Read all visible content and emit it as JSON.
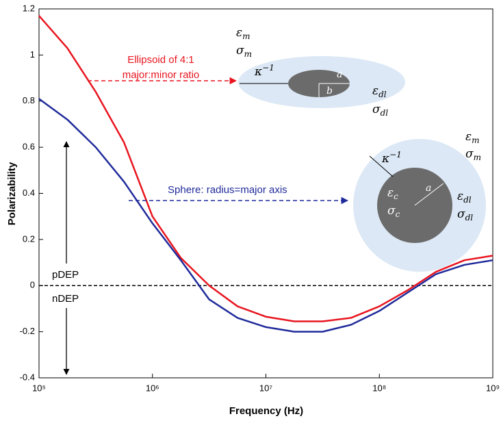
{
  "chart_data": {
    "type": "line",
    "xlabel": "Frequency (Hz)",
    "ylabel": "Polarizability",
    "xscale": "log",
    "x": [
      100000,
      177828,
      316228,
      562341,
      1000000,
      1778279,
      3162278,
      5623413,
      10000000,
      17782794,
      31622777,
      56234133,
      100000000,
      177827941,
      316227766,
      562341325,
      1000000000
    ],
    "series": [
      {
        "color": "#e8141e",
        "values": [
          1.17,
          1.03,
          0.84,
          0.62,
          0.3,
          0.12,
          0.0,
          -0.09,
          -0.135,
          -0.155,
          -0.155,
          -0.14,
          -0.09,
          -0.02,
          0.06,
          0.11,
          0.13
        ]
      },
      {
        "color": "#1f2a9a",
        "values": [
          0.81,
          0.72,
          0.6,
          0.45,
          0.27,
          0.11,
          -0.06,
          -0.14,
          -0.18,
          -0.2,
          -0.2,
          -0.17,
          -0.11,
          -0.03,
          0.05,
          0.09,
          0.11
        ]
      }
    ],
    "xlim": [
      100000,
      1000000000
    ],
    "xticks": [
      {
        "value": 100000,
        "label": "10⁵"
      },
      {
        "value": 1000000,
        "label": "10⁶"
      },
      {
        "value": 10000000,
        "label": "10⁷"
      },
      {
        "value": 100000000,
        "label": "10⁸"
      },
      {
        "value": 1000000000,
        "label": "10⁹"
      }
    ],
    "ylim": [
      -0.4,
      1.2
    ],
    "yticks": [
      -0.4,
      -0.2,
      0,
      0.2,
      0.4,
      0.6,
      0.8,
      1,
      1.2
    ],
    "reference_line": 0,
    "annotations": {
      "ellipsoid_label": [
        "Ellipsoid of 4:1",
        "major:minor ratio"
      ],
      "sphere_label": "Sphere: radius=major axis",
      "pdep": "pDEP",
      "ndep": "nDEP",
      "eps": "ε",
      "sigma": "σ",
      "kappa": "κ",
      "kappa_exp": "−1",
      "medium": "m",
      "double_layer": "dl",
      "cell": "c",
      "major": "a",
      "minor": "b"
    }
  }
}
